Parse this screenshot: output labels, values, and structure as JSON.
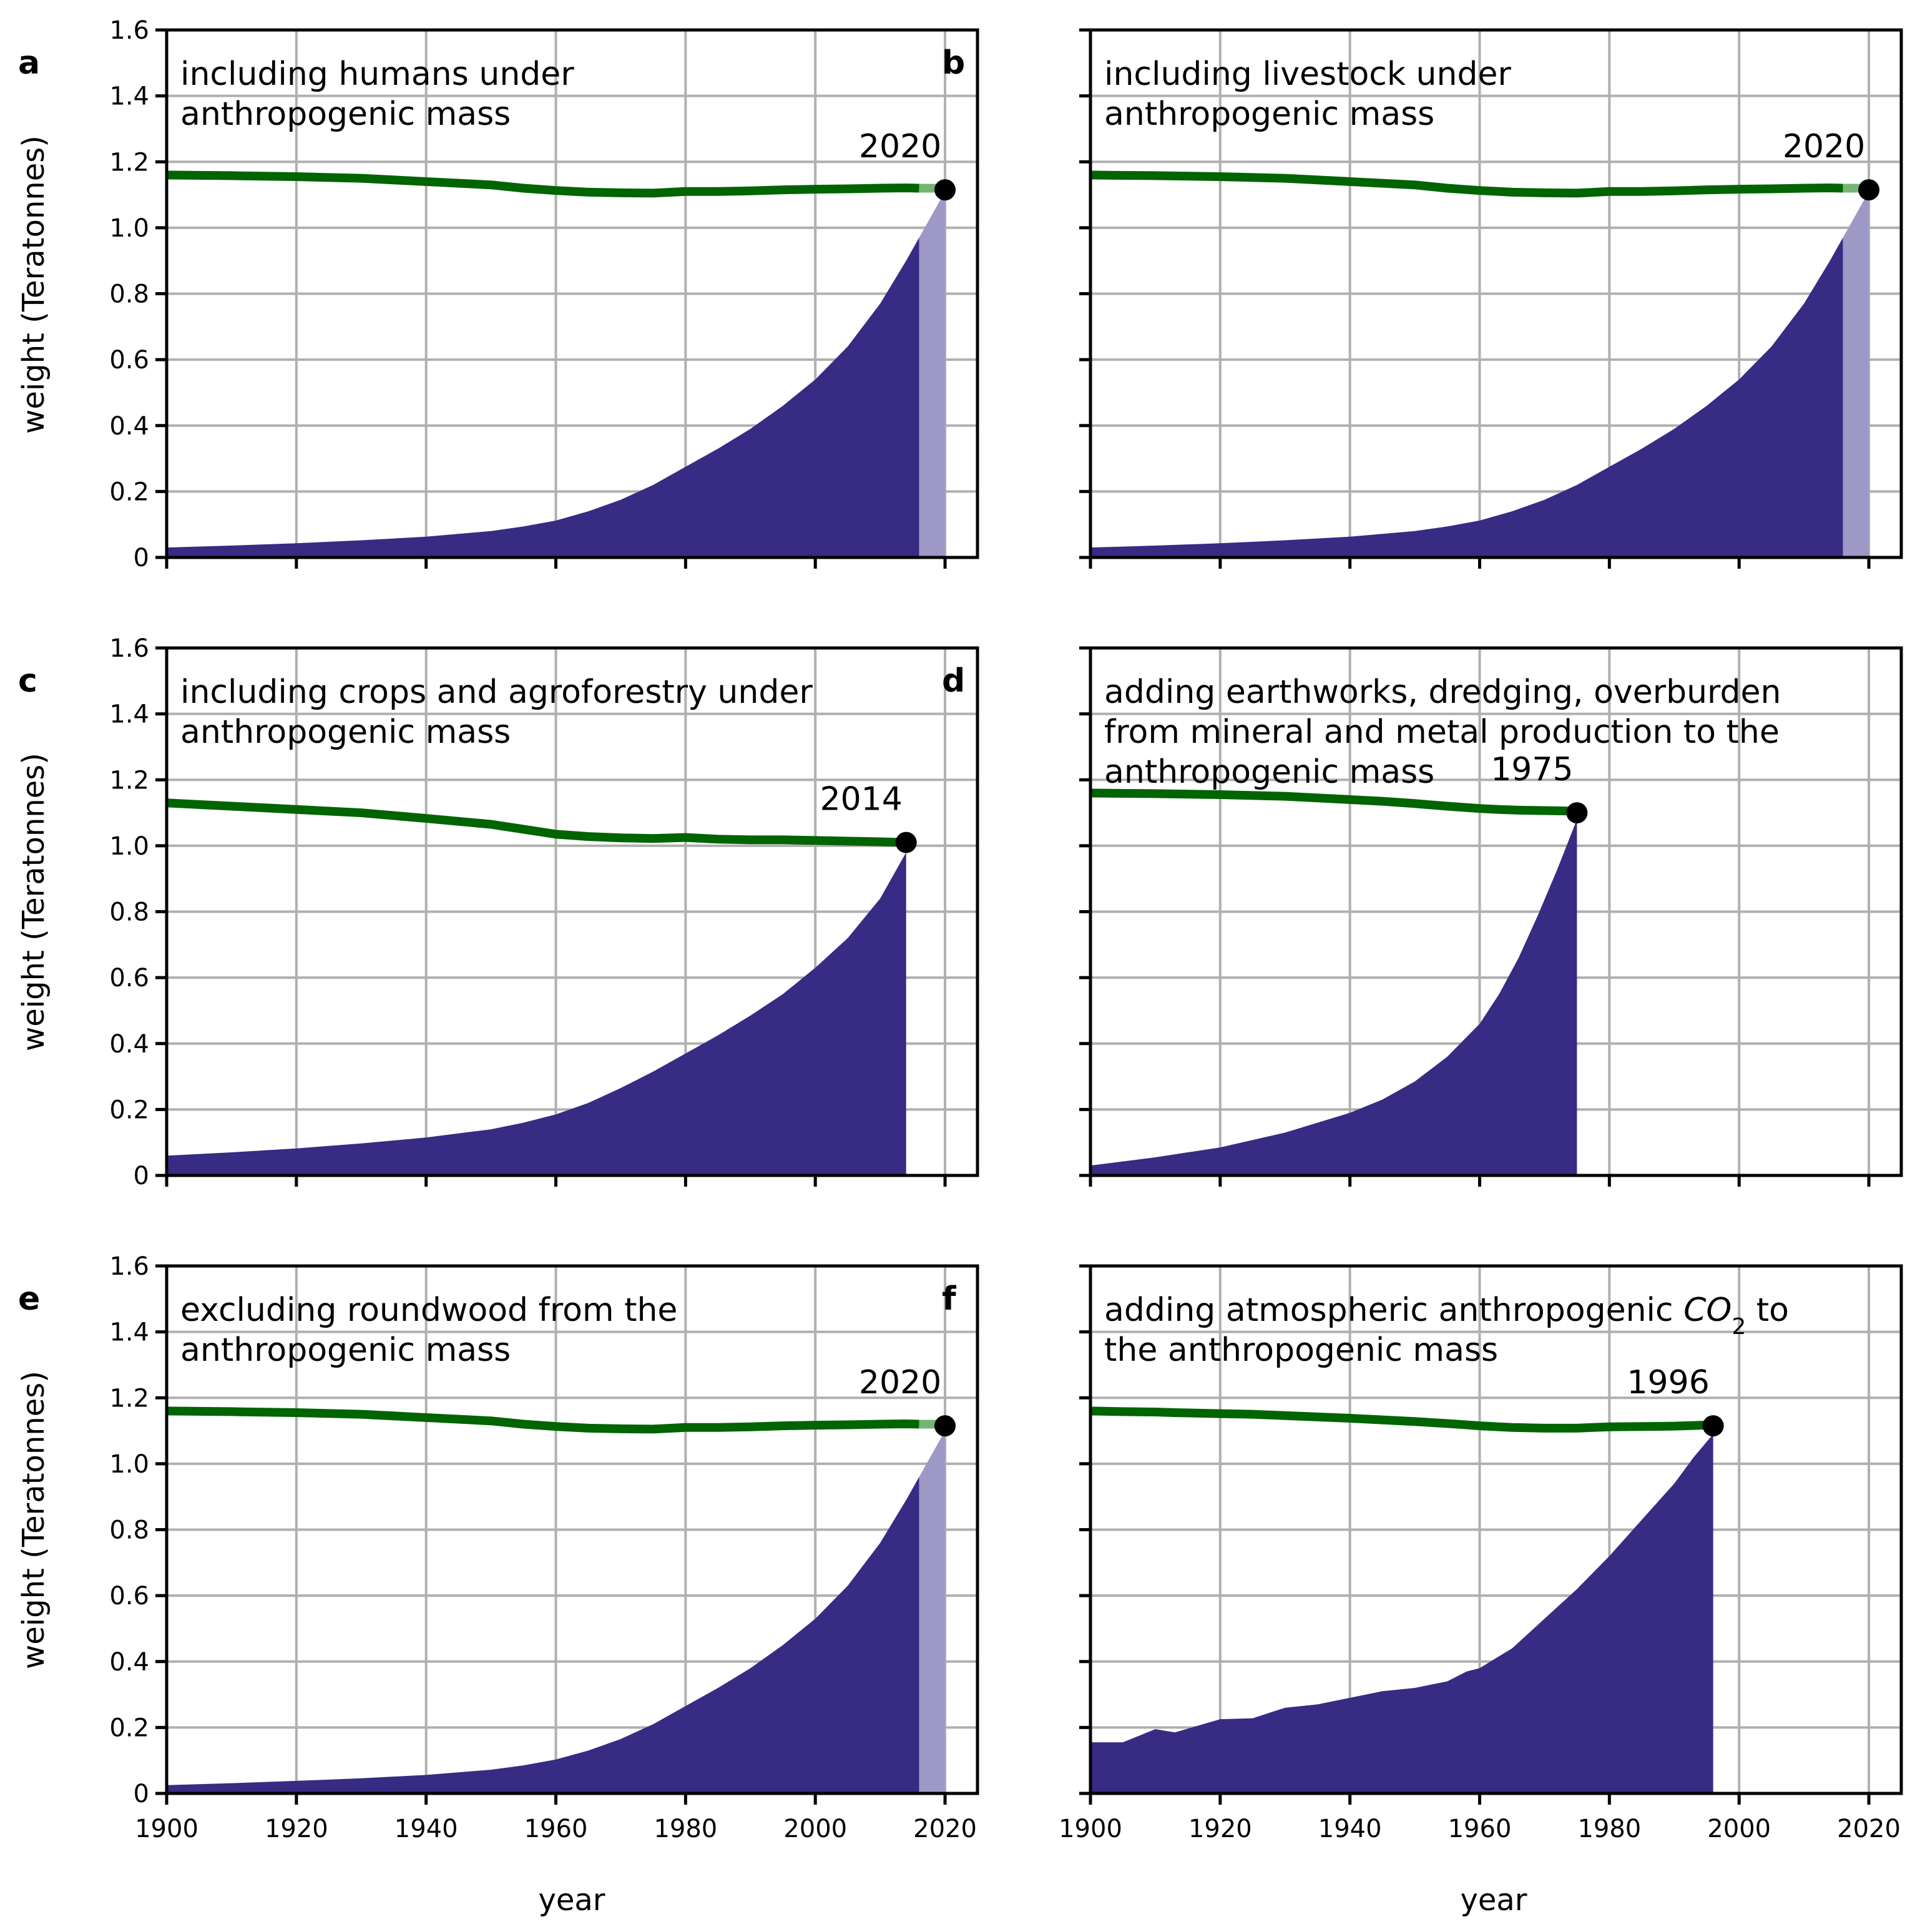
{
  "figure": {
    "xlabel": "year",
    "ylabel": "weight (Teratonnes)"
  },
  "colors": {
    "anthropogenic": "#372b84",
    "anthropogenic_projection": "#9e98c7",
    "biomass": "#006400",
    "biomass_projection": "#74b574",
    "marker": "#000000",
    "grid": "#b0b0b0"
  },
  "chart_data": [
    {
      "type": "area",
      "letter": "a",
      "note_lines": [
        "including humans under",
        "anthropogenic mass"
      ],
      "crossover_label": "2020",
      "xlim": [
        1900,
        2025
      ],
      "ylim": [
        0,
        1.6
      ],
      "xticks": [
        1900,
        1920,
        1940,
        1960,
        1980,
        2000,
        2020
      ],
      "yticks": [
        "0",
        "0.2",
        "0.4",
        "0.6",
        "0.8",
        "1.0",
        "1.2",
        "1.4",
        "1.6"
      ],
      "x": [
        1900,
        1910,
        1920,
        1930,
        1940,
        1950,
        1955,
        1960,
        1965,
        1970,
        1975,
        1980,
        1985,
        1990,
        1995,
        2000,
        2005,
        2010,
        2014,
        2016
      ],
      "anthropogenic": [
        0.03,
        0.036,
        0.043,
        0.052,
        0.063,
        0.08,
        0.094,
        0.112,
        0.14,
        0.175,
        0.22,
        0.275,
        0.33,
        0.39,
        0.46,
        0.54,
        0.64,
        0.77,
        0.9,
        0.97
      ],
      "projection": {
        "x": [
          2016,
          2020
        ],
        "anthropogenic": [
          0.97,
          1.11
        ],
        "biomass": [
          1.12,
          1.12
        ]
      },
      "biomass": [
        1.16,
        1.158,
        1.155,
        1.15,
        1.14,
        1.13,
        1.12,
        1.113,
        1.108,
        1.106,
        1.105,
        1.11,
        1.11,
        1.112,
        1.115,
        1.117,
        1.118,
        1.12,
        1.121,
        1.12
      ],
      "crossover": {
        "x": 2020,
        "y": 1.115
      }
    },
    {
      "type": "area",
      "letter": "b",
      "note_lines": [
        "including livestock under",
        "anthropogenic mass"
      ],
      "crossover_label": "2020",
      "xlim": [
        1900,
        2025
      ],
      "ylim": [
        0,
        1.6
      ],
      "xticks": [
        1900,
        1920,
        1940,
        1960,
        1980,
        2000,
        2020
      ],
      "yticks": [],
      "x": [
        1900,
        1910,
        1920,
        1930,
        1940,
        1950,
        1955,
        1960,
        1965,
        1970,
        1975,
        1980,
        1985,
        1990,
        1995,
        2000,
        2005,
        2010,
        2014,
        2016
      ],
      "anthropogenic": [
        0.03,
        0.036,
        0.043,
        0.052,
        0.063,
        0.08,
        0.094,
        0.112,
        0.14,
        0.175,
        0.22,
        0.275,
        0.33,
        0.39,
        0.46,
        0.54,
        0.64,
        0.77,
        0.9,
        0.97
      ],
      "projection": {
        "x": [
          2016,
          2020
        ],
        "anthropogenic": [
          0.97,
          1.11
        ],
        "biomass": [
          1.12,
          1.12
        ]
      },
      "biomass": [
        1.16,
        1.158,
        1.155,
        1.15,
        1.14,
        1.13,
        1.12,
        1.113,
        1.108,
        1.106,
        1.105,
        1.11,
        1.11,
        1.112,
        1.115,
        1.117,
        1.118,
        1.12,
        1.121,
        1.12
      ],
      "crossover": {
        "x": 2020,
        "y": 1.115
      }
    },
    {
      "type": "area",
      "letter": "c",
      "note_lines": [
        "including crops and agroforestry under",
        "anthropogenic mass"
      ],
      "crossover_label": "2014",
      "xlim": [
        1900,
        2025
      ],
      "ylim": [
        0,
        1.6
      ],
      "xticks": [
        1900,
        1920,
        1940,
        1960,
        1980,
        2000,
        2020
      ],
      "yticks": [
        "0",
        "0.2",
        "0.4",
        "0.6",
        "0.8",
        "1.0",
        "1.2",
        "1.4",
        "1.6"
      ],
      "x": [
        1900,
        1910,
        1920,
        1930,
        1940,
        1950,
        1955,
        1960,
        1965,
        1970,
        1975,
        1980,
        1985,
        1990,
        1995,
        2000,
        2005,
        2010,
        2014
      ],
      "anthropogenic": [
        0.06,
        0.07,
        0.082,
        0.097,
        0.115,
        0.14,
        0.16,
        0.185,
        0.22,
        0.265,
        0.315,
        0.37,
        0.425,
        0.485,
        0.55,
        0.63,
        0.72,
        0.84,
        0.98
      ],
      "projection": null,
      "biomass": [
        1.13,
        1.12,
        1.11,
        1.1,
        1.083,
        1.065,
        1.05,
        1.035,
        1.028,
        1.024,
        1.022,
        1.025,
        1.02,
        1.018,
        1.018,
        1.016,
        1.014,
        1.012,
        1.01
      ],
      "crossover": {
        "x": 2014,
        "y": 1.01
      }
    },
    {
      "type": "area",
      "letter": "d",
      "note_lines": [
        "adding earthworks, dredging, overburden",
        "from mineral and metal production to the",
        "anthropogenic mass"
      ],
      "crossover_label": "1975",
      "xlim": [
        1900,
        2025
      ],
      "ylim": [
        0,
        1.6
      ],
      "xticks": [
        1900,
        1920,
        1940,
        1960,
        1980,
        2000,
        2020
      ],
      "yticks": [],
      "x": [
        1900,
        1910,
        1920,
        1930,
        1940,
        1945,
        1950,
        1955,
        1960,
        1963,
        1966,
        1969,
        1972,
        1975
      ],
      "anthropogenic": [
        0.03,
        0.055,
        0.085,
        0.13,
        0.19,
        0.23,
        0.285,
        0.36,
        0.46,
        0.55,
        0.66,
        0.79,
        0.93,
        1.08
      ],
      "projection": null,
      "biomass": [
        1.16,
        1.158,
        1.155,
        1.15,
        1.14,
        1.135,
        1.128,
        1.12,
        1.113,
        1.11,
        1.108,
        1.107,
        1.106,
        1.105
      ],
      "crossover": {
        "x": 1975,
        "y": 1.1
      }
    },
    {
      "type": "area",
      "letter": "e",
      "note_lines": [
        "excluding roundwood from the",
        "anthropogenic mass"
      ],
      "crossover_label": "2020",
      "xlim": [
        1900,
        2025
      ],
      "ylim": [
        0,
        1.6
      ],
      "xticks": [
        1900,
        1920,
        1940,
        1960,
        1980,
        2000,
        2020
      ],
      "yticks": [
        "0",
        "0.2",
        "0.4",
        "0.6",
        "0.8",
        "1.0",
        "1.2",
        "1.4",
        "1.6"
      ],
      "x": [
        1900,
        1910,
        1920,
        1930,
        1940,
        1950,
        1955,
        1960,
        1965,
        1970,
        1975,
        1980,
        1985,
        1990,
        1995,
        2000,
        2005,
        2010,
        2014,
        2016
      ],
      "anthropogenic": [
        0.025,
        0.031,
        0.038,
        0.046,
        0.056,
        0.072,
        0.085,
        0.103,
        0.13,
        0.165,
        0.21,
        0.265,
        0.32,
        0.38,
        0.45,
        0.53,
        0.63,
        0.76,
        0.89,
        0.96
      ],
      "projection": {
        "x": [
          2016,
          2020
        ],
        "anthropogenic": [
          0.96,
          1.1
        ],
        "biomass": [
          1.12,
          1.12
        ]
      },
      "biomass": [
        1.16,
        1.158,
        1.155,
        1.15,
        1.14,
        1.13,
        1.12,
        1.113,
        1.108,
        1.106,
        1.105,
        1.11,
        1.11,
        1.112,
        1.115,
        1.117,
        1.118,
        1.12,
        1.121,
        1.12
      ],
      "crossover": {
        "x": 2020,
        "y": 1.115
      }
    },
    {
      "type": "area",
      "letter": "f",
      "note_lines": [
        "adding atmospheric anthropogenic CO2 to",
        "the anthropogenic mass"
      ],
      "note_segments": [
        [
          "adding atmospheric anthropogenic ",
          "CO",
          "2",
          " to"
        ],
        [
          "the anthropogenic mass"
        ]
      ],
      "crossover_label": "1996",
      "xlim": [
        1900,
        2025
      ],
      "ylim": [
        0,
        1.6
      ],
      "xticks": [
        1900,
        1920,
        1940,
        1960,
        1980,
        2000,
        2020
      ],
      "yticks": [],
      "x": [
        1900,
        1905,
        1910,
        1913,
        1920,
        1925,
        1930,
        1935,
        1940,
        1945,
        1950,
        1955,
        1958,
        1960,
        1965,
        1970,
        1975,
        1980,
        1985,
        1990,
        1993,
        1996
      ],
      "anthropogenic": [
        0.155,
        0.155,
        0.195,
        0.185,
        0.225,
        0.228,
        0.26,
        0.27,
        0.29,
        0.31,
        0.32,
        0.34,
        0.37,
        0.38,
        0.44,
        0.53,
        0.62,
        0.72,
        0.83,
        0.94,
        1.02,
        1.09
      ],
      "projection": null,
      "biomass": [
        1.16,
        1.158,
        1.157,
        1.155,
        1.152,
        1.15,
        1.146,
        1.142,
        1.138,
        1.133,
        1.128,
        1.122,
        1.118,
        1.115,
        1.11,
        1.108,
        1.108,
        1.112,
        1.113,
        1.114,
        1.116,
        1.118
      ],
      "crossover": {
        "x": 1996,
        "y": 1.115
      }
    }
  ]
}
